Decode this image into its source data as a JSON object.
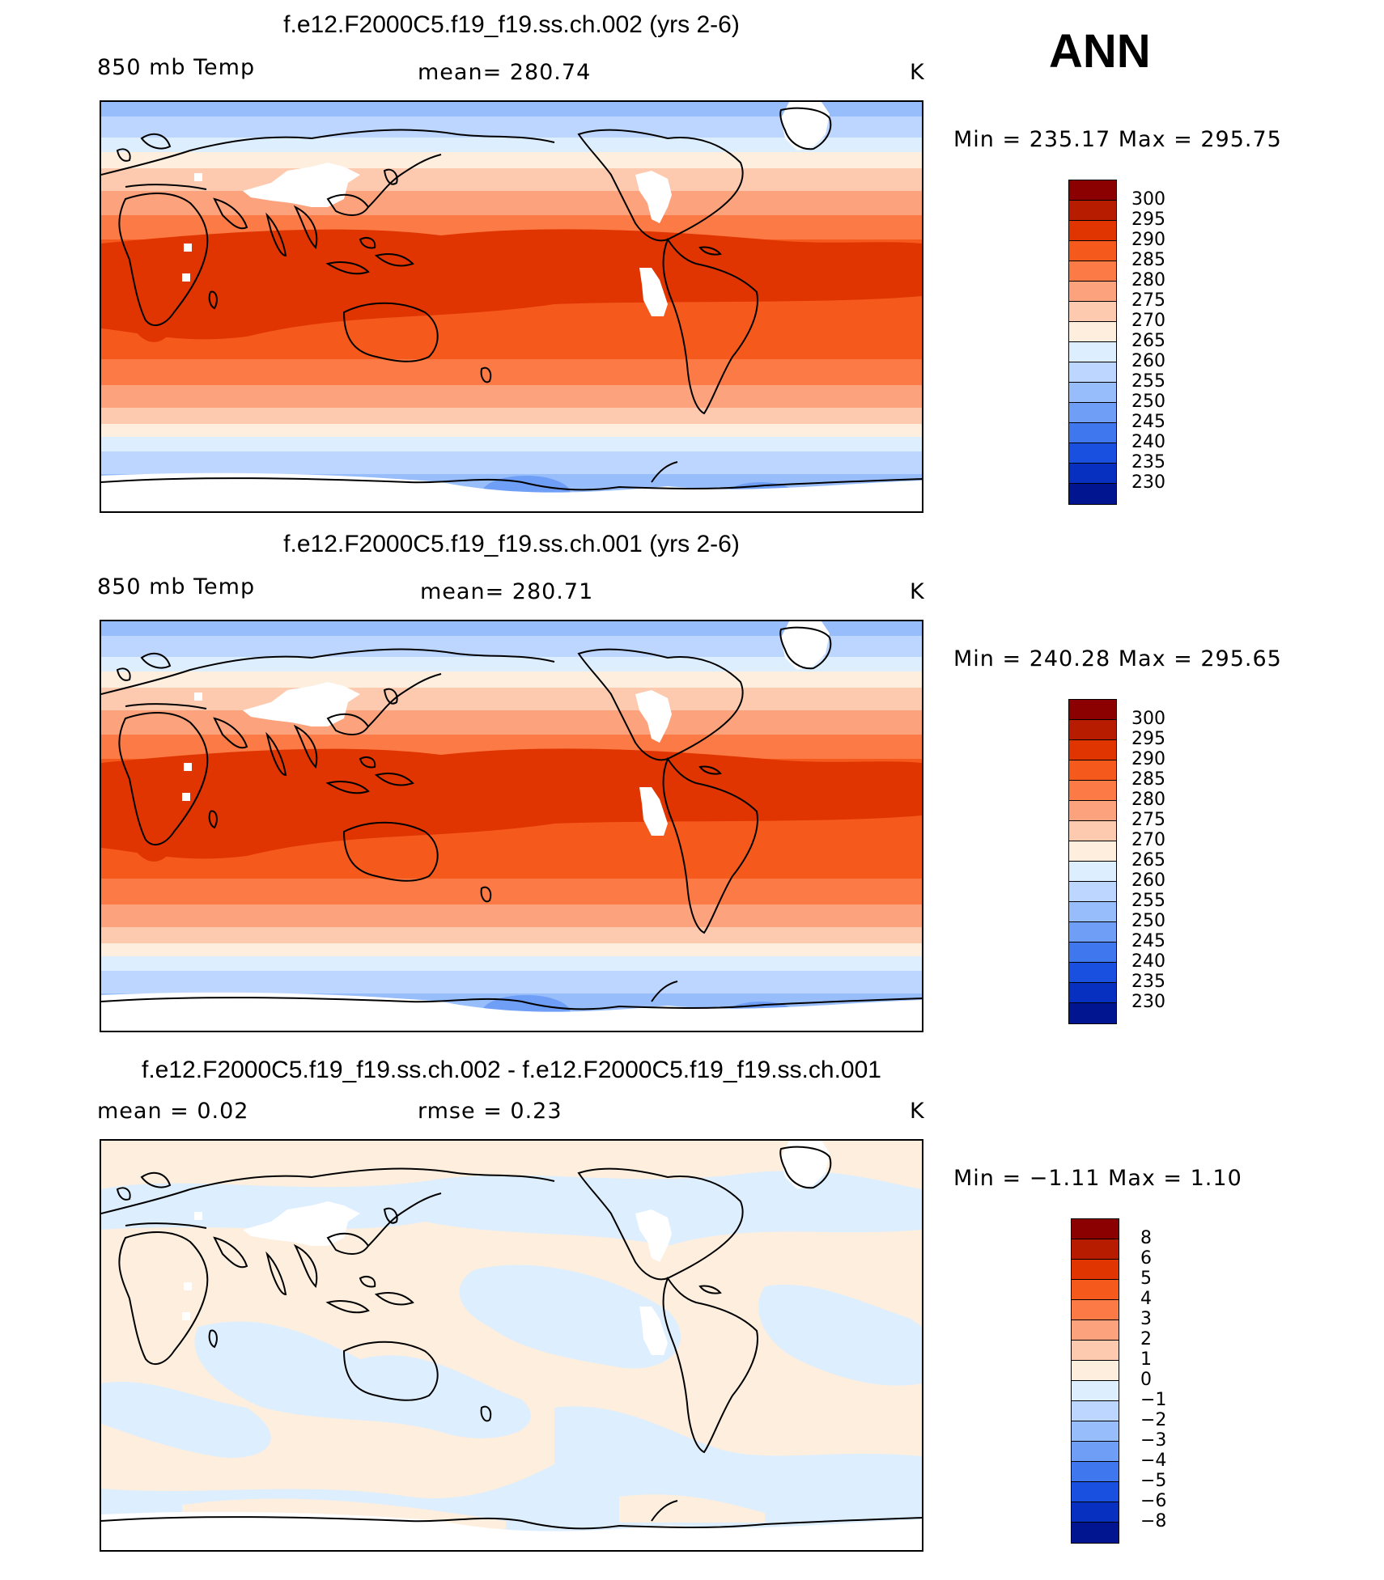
{
  "season": "ANN",
  "panels": [
    {
      "title": "f.e12.F2000C5.f19_f19.ss.ch.002 (yrs 2-6)",
      "left_label": "850 mb Temp",
      "center_label": "mean=  280.74",
      "units": "K",
      "minmax": "Min = 235.17 Max = 295.75",
      "field": "absolute"
    },
    {
      "title": "f.e12.F2000C5.f19_f19.ss.ch.001 (yrs 2-6)",
      "left_label": "850 mb Temp",
      "center_label": "mean=  280.71",
      "units": "K",
      "minmax": "Min = 240.28 Max = 295.65",
      "field": "absolute"
    },
    {
      "title": "f.e12.F2000C5.f19_f19.ss.ch.002 - f.e12.F2000C5.f19_f19.ss.ch.001",
      "left_label": "mean =    0.02",
      "center_label": "rmse =    0.23",
      "units": "K",
      "minmax": "Min =  −1.11 Max =    1.10",
      "field": "difference"
    }
  ],
  "colorbar_abs": {
    "labels": [
      "300",
      "295",
      "290",
      "285",
      "280",
      "275",
      "270",
      "265",
      "260",
      "255",
      "250",
      "245",
      "240",
      "235",
      "230"
    ],
    "colors": [
      "#8b0000",
      "#b81c00",
      "#e03500",
      "#f55a1c",
      "#fb7a45",
      "#fca27c",
      "#fdcab0",
      "#fdeedd",
      "#ddeeff",
      "#bdd6ff",
      "#98bdfb",
      "#6e9ef6",
      "#3f78ee",
      "#1a50e0",
      "#0830c0",
      "#00158f"
    ]
  },
  "colorbar_diff": {
    "labels": [
      "8",
      "6",
      "5",
      "4",
      "3",
      "2",
      "1",
      "0",
      "−1",
      "−2",
      "−3",
      "−4",
      "−5",
      "−6",
      "−8"
    ],
    "colors": [
      "#8b0000",
      "#b81c00",
      "#e03500",
      "#f55a1c",
      "#fb7a45",
      "#fca27c",
      "#fdcab0",
      "#fdeedd",
      "#ddeeff",
      "#bdd6ff",
      "#98bdfb",
      "#6e9ef6",
      "#3f78ee",
      "#1a50e0",
      "#0830c0",
      "#00158f"
    ]
  }
}
